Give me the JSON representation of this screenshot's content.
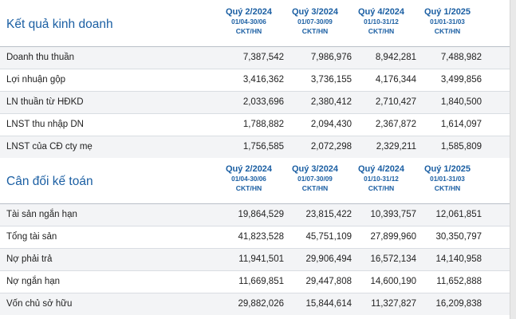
{
  "kqkd": {
    "title": "Kết quả kinh doanh",
    "periods": [
      {
        "quarter": "Quý 2/2024",
        "range": "01/04-30/06",
        "unit": "CKT/HN"
      },
      {
        "quarter": "Quý 3/2024",
        "range": "01/07-30/09",
        "unit": "CKT/HN"
      },
      {
        "quarter": "Quý 4/2024",
        "range": "01/10-31/12",
        "unit": "CKT/HN"
      },
      {
        "quarter": "Quý 1/2025",
        "range": "01/01-31/03",
        "unit": "CKT/HN"
      }
    ],
    "rows": [
      {
        "label": "Doanh thu thuần",
        "values": [
          "7,387,542",
          "7,986,976",
          "8,942,281",
          "7,488,982"
        ]
      },
      {
        "label": "Lợi nhuận gộp",
        "values": [
          "3,416,362",
          "3,736,155",
          "4,176,344",
          "3,499,856"
        ]
      },
      {
        "label": "LN thuần từ HĐKD",
        "values": [
          "2,033,696",
          "2,380,412",
          "2,710,427",
          "1,840,500"
        ]
      },
      {
        "label": "LNST thu nhập DN",
        "values": [
          "1,788,882",
          "2,094,430",
          "2,367,872",
          "1,614,097"
        ]
      },
      {
        "label": "LNST của CĐ cty mẹ",
        "values": [
          "1,756,585",
          "2,072,298",
          "2,329,211",
          "1,585,809"
        ]
      }
    ]
  },
  "cdkt": {
    "title": "Cân đối kế toán",
    "periods": [
      {
        "quarter": "Quý 2/2024",
        "range": "01/04-30/06",
        "unit": "CKT/HN"
      },
      {
        "quarter": "Quý 3/2024",
        "range": "01/07-30/09",
        "unit": "CKT/HN"
      },
      {
        "quarter": "Quý 4/2024",
        "range": "01/10-31/12",
        "unit": "CKT/HN"
      },
      {
        "quarter": "Quý 1/2025",
        "range": "01/01-31/03",
        "unit": "CKT/HN"
      }
    ],
    "rows": [
      {
        "label": "Tài sản ngắn hạn",
        "values": [
          "19,864,529",
          "23,815,422",
          "10,393,757",
          "12,061,851"
        ]
      },
      {
        "label": "Tổng tài sản",
        "values": [
          "41,823,528",
          "45,751,109",
          "27,899,960",
          "30,350,797"
        ]
      },
      {
        "label": "Nợ phải trả",
        "values": [
          "11,941,501",
          "29,906,494",
          "16,572,134",
          "14,140,958"
        ]
      },
      {
        "label": "Nợ ngắn hạn",
        "values": [
          "11,669,851",
          "29,447,808",
          "14,600,190",
          "11,652,888"
        ]
      },
      {
        "label": "Vốn chủ sở hữu",
        "values": [
          "29,882,026",
          "15,844,614",
          "11,327,827",
          "16,209,838"
        ]
      }
    ]
  },
  "colors": {
    "accent": "#1b5fa3",
    "row_shade": "#f3f4f6",
    "divider": "#d9dde2"
  }
}
